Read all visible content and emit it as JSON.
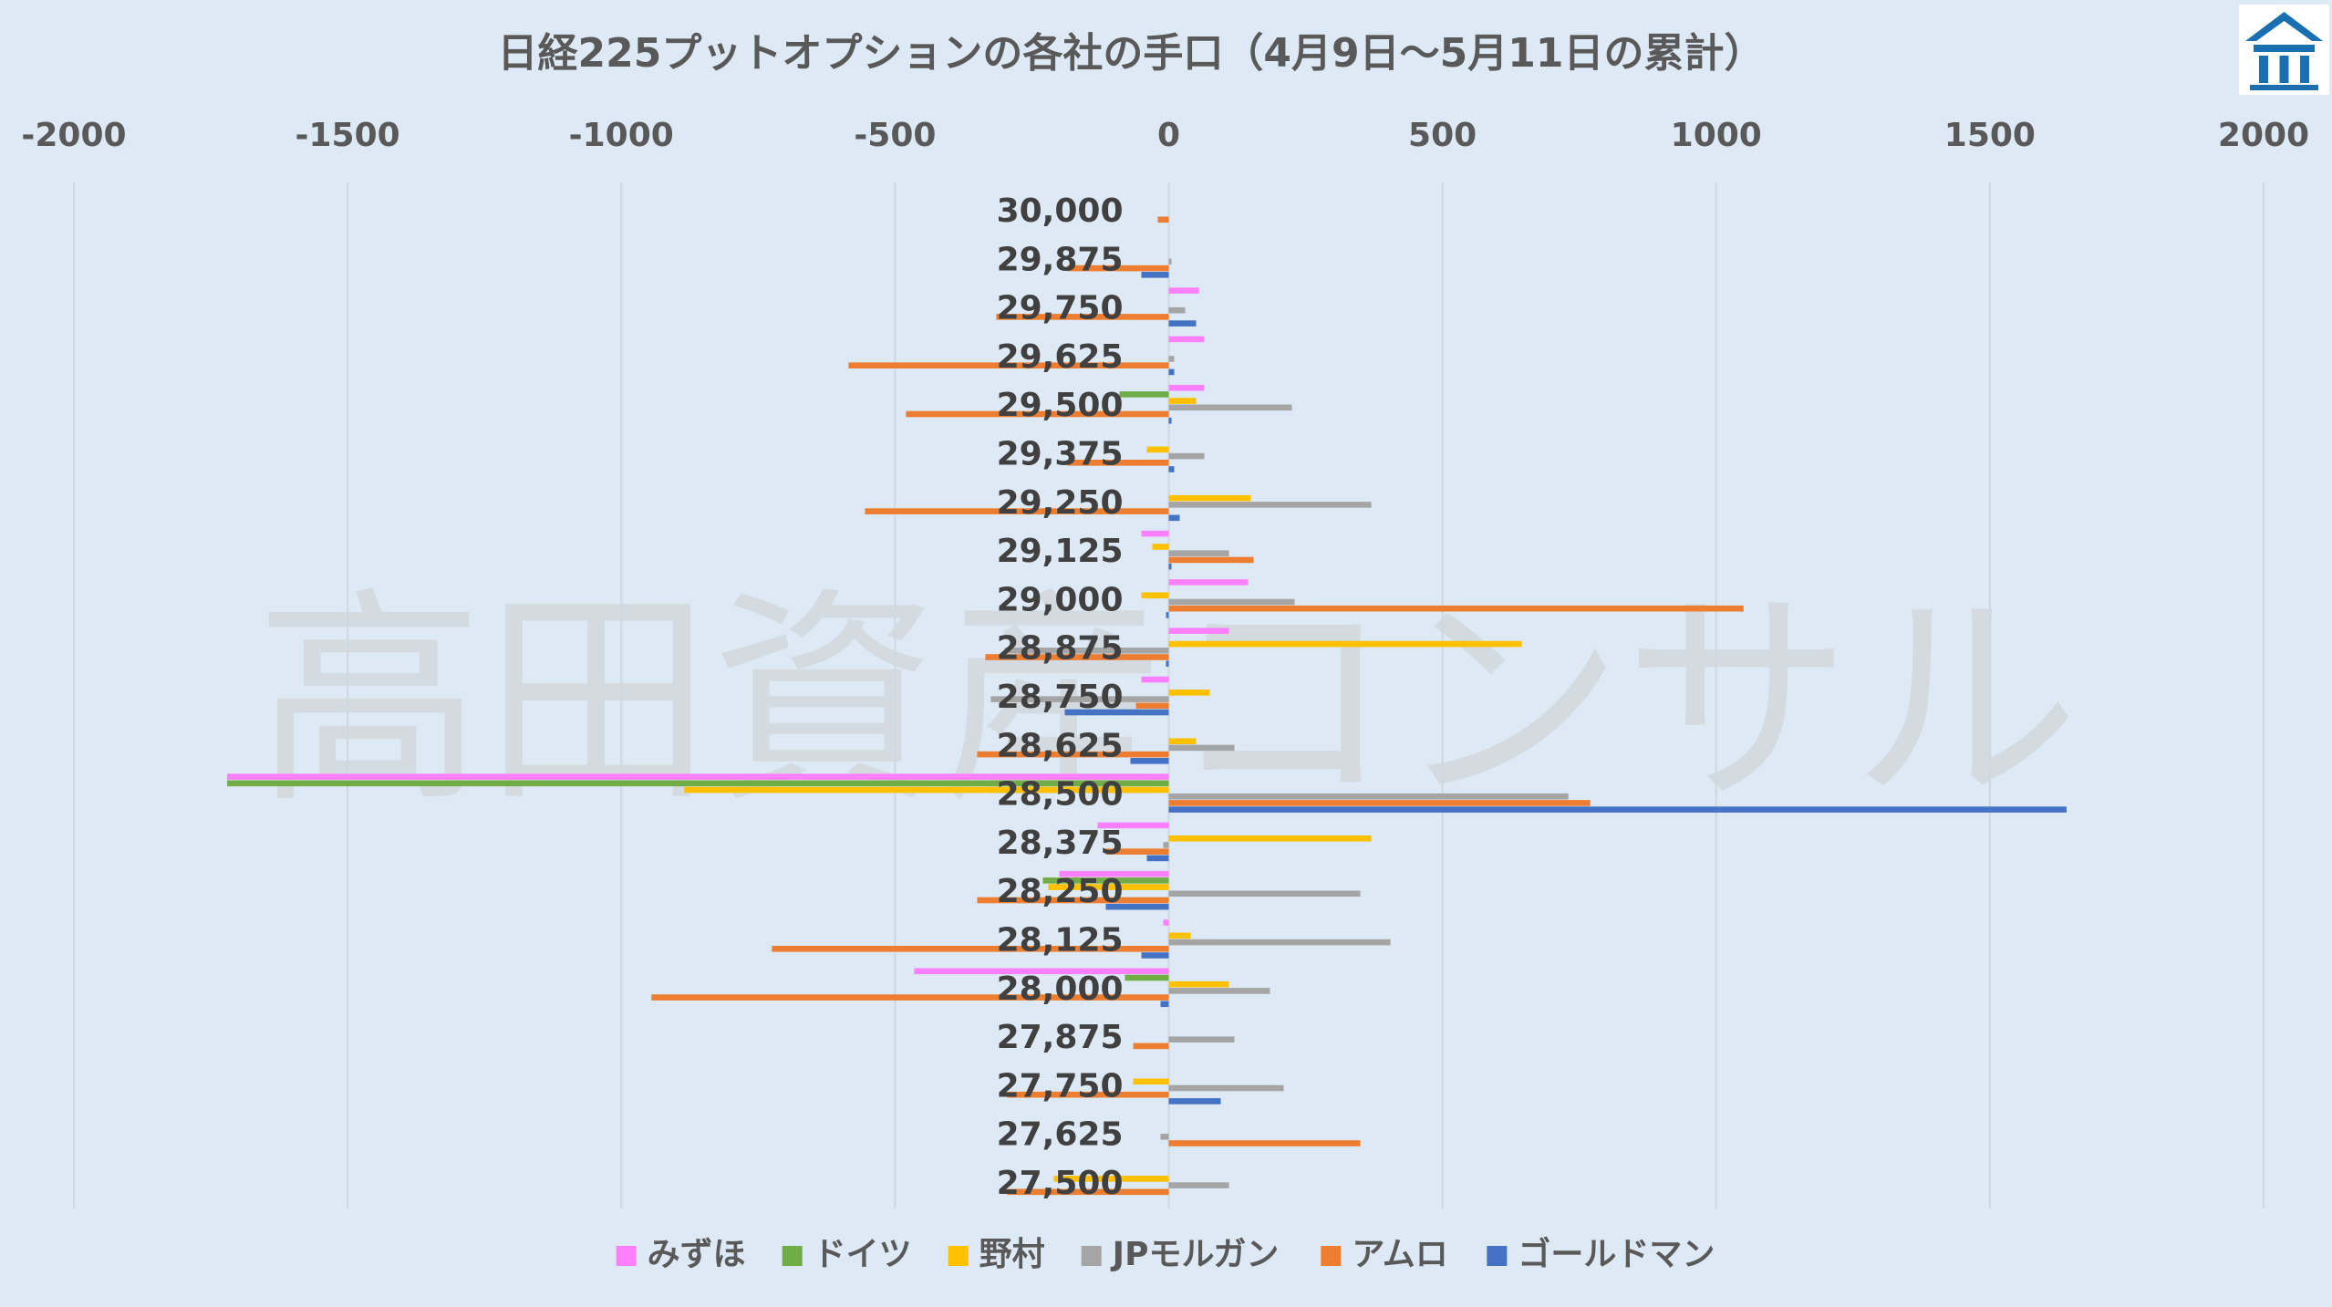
{
  "chart_data": {
    "type": "bar",
    "orientation": "horizontal",
    "title": "日経225プットオプションの各社の手口（4月9日～5月11日の累計）",
    "xlim": [
      -2000,
      2000
    ],
    "xticks": [
      "-2000",
      "-1500",
      "-1000",
      "-500",
      "0",
      "500",
      "1000",
      "1500",
      "2000"
    ],
    "xtick_values": [
      -2000,
      -1500,
      -1000,
      -500,
      0,
      500,
      1000,
      1500,
      2000
    ],
    "grid": true,
    "legend_position": "bottom",
    "categories": [
      "30,000",
      "29,875",
      "29,750",
      "29,625",
      "29,500",
      "29,375",
      "29,250",
      "29,125",
      "29,000",
      "28,875",
      "28,750",
      "28,625",
      "28,500",
      "28,375",
      "28,250",
      "28,125",
      "28,000",
      "27,875",
      "27,750",
      "27,625",
      "27,500"
    ],
    "series": [
      {
        "name": "みずほ",
        "color": "#ff80ff",
        "values": [
          0,
          0,
          55,
          65,
          65,
          0,
          0,
          -50,
          145,
          110,
          -50,
          0,
          -1720,
          -130,
          -200,
          -10,
          -465,
          0,
          0,
          0,
          0
        ]
      },
      {
        "name": "ドイツ",
        "color": "#70ad47",
        "values": [
          0,
          0,
          0,
          0,
          -90,
          0,
          0,
          0,
          0,
          0,
          0,
          0,
          -1720,
          0,
          -230,
          0,
          -80,
          0,
          0,
          0,
          0
        ]
      },
      {
        "name": "野村",
        "color": "#ffc000",
        "values": [
          0,
          0,
          0,
          0,
          50,
          -40,
          150,
          -30,
          -50,
          645,
          75,
          50,
          -885,
          370,
          -220,
          40,
          110,
          0,
          -65,
          0,
          -210
        ]
      },
      {
        "name": "JPモルガン",
        "color": "#a5a5a5",
        "values": [
          0,
          5,
          30,
          10,
          225,
          65,
          370,
          110,
          230,
          -300,
          -325,
          120,
          730,
          -10,
          350,
          405,
          185,
          120,
          210,
          -15,
          110
        ]
      },
      {
        "name": "アムロ",
        "color": "#ed7d31",
        "values": [
          -20,
          -185,
          -315,
          -585,
          -480,
          -185,
          -555,
          155,
          1050,
          -335,
          -60,
          -350,
          770,
          -115,
          -350,
          -725,
          -945,
          -65,
          -295,
          350,
          -295
        ]
      },
      {
        "name": "ゴールドマン",
        "color": "#4472c4",
        "values": [
          0,
          -50,
          50,
          10,
          5,
          10,
          20,
          5,
          -5,
          -5,
          -190,
          -70,
          1640,
          -40,
          -115,
          -50,
          -15,
          0,
          95,
          0,
          0
        ]
      }
    ]
  },
  "watermark": "高田資産コンサル",
  "logo_icon": "building-logo-icon"
}
